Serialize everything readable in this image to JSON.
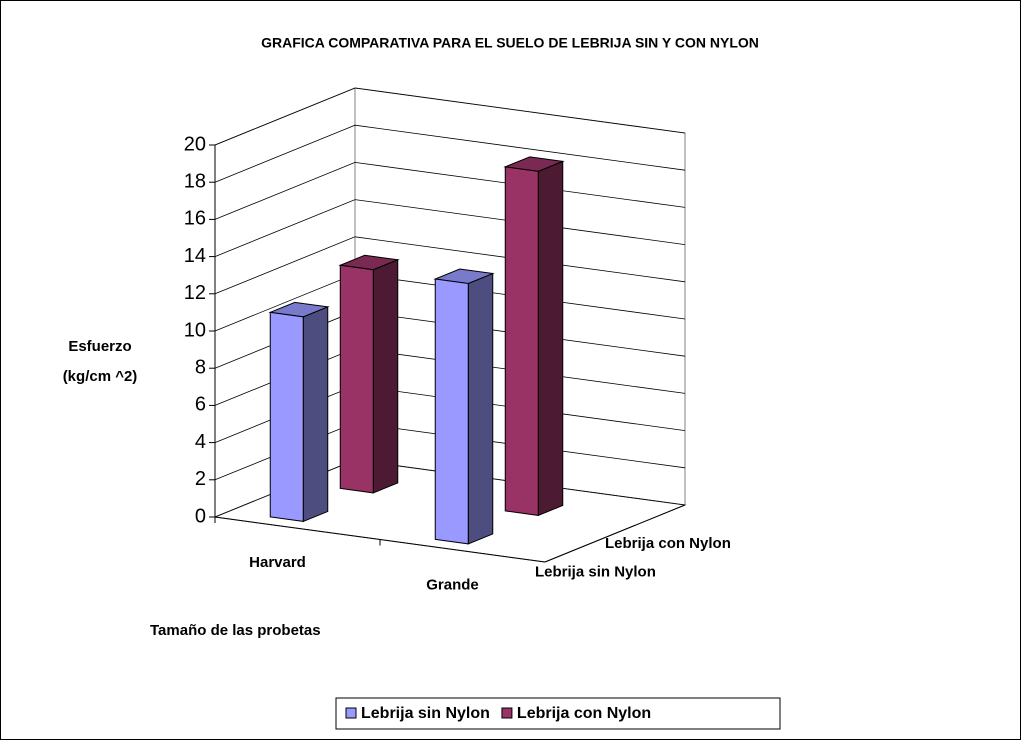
{
  "chart_data": {
    "type": "bar3d",
    "title": "GRAFICA COMPARATIVA PARA EL SUELO DE LEBRIJA SIN Y CON NYLON",
    "ylabel": [
      "Esfuerzo",
      "(kg/cm ^2)"
    ],
    "xlabel": "Tamaño de las probetas",
    "categories": [
      "Harvard",
      "Grande"
    ],
    "series": [
      {
        "name": "Lebrija sin Nylon",
        "color": "#9999ff",
        "values": [
          11,
          14
        ]
      },
      {
        "name": "Lebrija con Nylon",
        "color": "#993366",
        "values": [
          12,
          18.5
        ]
      }
    ],
    "ylim": [
      0,
      20
    ],
    "yticks": [
      0,
      2,
      4,
      6,
      8,
      10,
      12,
      14,
      16,
      18,
      20
    ],
    "grid": true,
    "legend": "bottom"
  }
}
